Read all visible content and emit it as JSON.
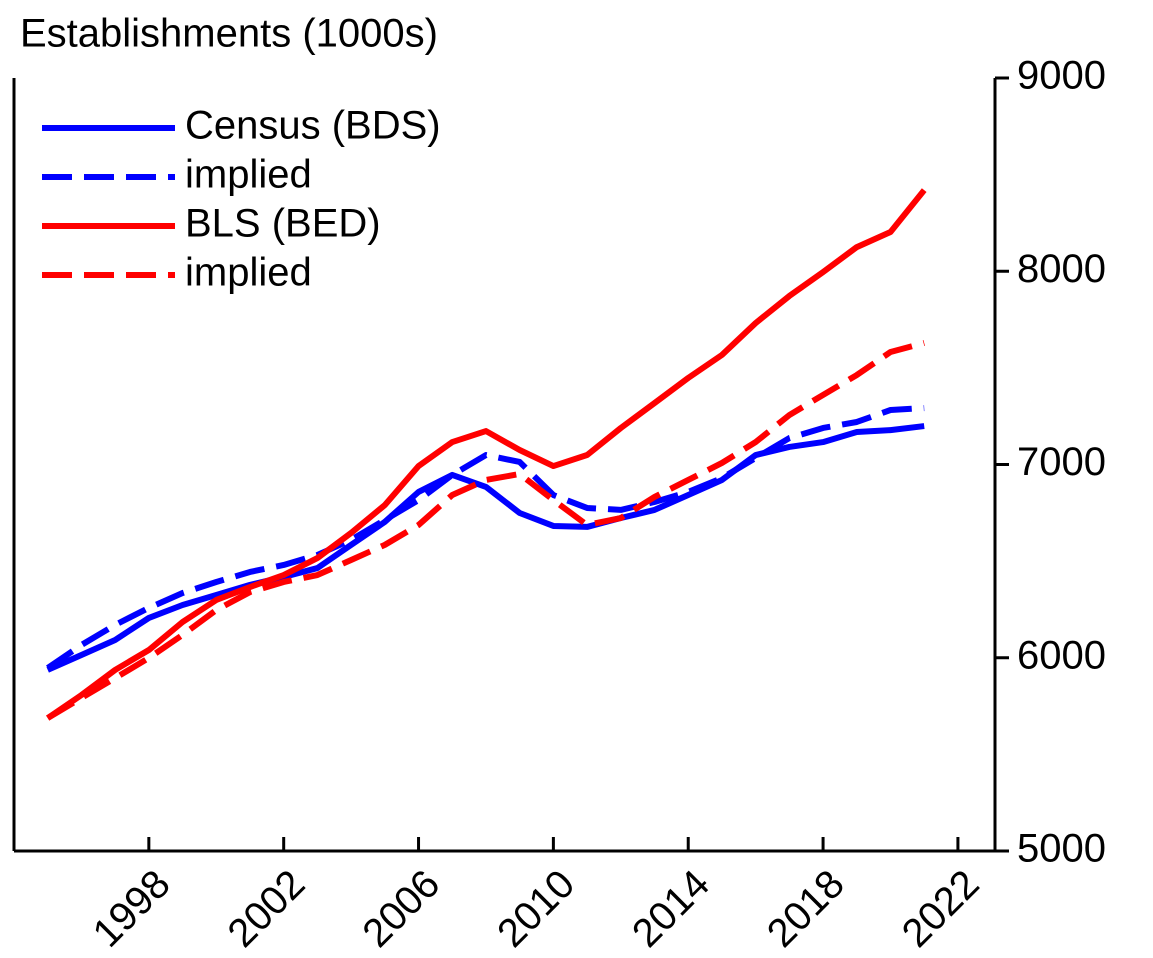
{
  "chart_data": {
    "type": "line",
    "title": "Establishments (1000s)",
    "x": [
      1995,
      1996,
      1997,
      1998,
      1999,
      2000,
      2001,
      2002,
      2003,
      2004,
      2005,
      2006,
      2007,
      2008,
      2009,
      2010,
      2011,
      2012,
      2013,
      2014,
      2015,
      2016,
      2017,
      2018,
      2019,
      2020,
      2021
    ],
    "series": [
      {
        "name": "Census (BDS)",
        "color": "#0000ff",
        "dashed": false,
        "values": [
          5937,
          6014,
          6092,
          6206,
          6273,
          6325,
          6377,
          6418,
          6464,
          6584,
          6703,
          6858,
          6946,
          6884,
          6749,
          6682,
          6677,
          6723,
          6765,
          6842,
          6920,
          7049,
          7091,
          7116,
          7168,
          7178,
          7199
        ]
      },
      {
        "name": "implied",
        "color": "#0000ff",
        "dashed": true,
        "values": [
          5947,
          6066,
          6170,
          6258,
          6335,
          6392,
          6444,
          6480,
          6532,
          6610,
          6713,
          6816,
          6946,
          7049,
          7013,
          6842,
          6775,
          6765,
          6806,
          6858,
          6930,
          7034,
          7137,
          7189,
          7220,
          7282,
          7292
        ]
      },
      {
        "name": "BLS (BED)",
        "color": "#ff0000",
        "dashed": false,
        "values": [
          5688,
          5807,
          5937,
          6040,
          6185,
          6299,
          6366,
          6428,
          6516,
          6646,
          6790,
          6992,
          7116,
          7173,
          7075,
          6992,
          7049,
          7189,
          7318,
          7448,
          7567,
          7732,
          7872,
          7996,
          8125,
          8203,
          8420
        ]
      },
      {
        "name": "implied",
        "color": "#ff0000",
        "dashed": true,
        "values": [
          5688,
          5792,
          5895,
          5999,
          6118,
          6247,
          6340,
          6392,
          6428,
          6506,
          6584,
          6687,
          6842,
          6920,
          6951,
          6816,
          6687,
          6723,
          6832,
          6920,
          7008,
          7116,
          7256,
          7360,
          7463,
          7582,
          7629
        ]
      }
    ],
    "xlim": [
      1994,
      2023.1
    ],
    "xticks": [
      1998,
      2002,
      2006,
      2010,
      2014,
      2018,
      2022
    ],
    "ylim": [
      5000,
      9000
    ],
    "yticks": [
      5000,
      6000,
      7000,
      8000,
      9000
    ],
    "y_axis_side": "right",
    "legend": "top-left",
    "grid": false
  }
}
